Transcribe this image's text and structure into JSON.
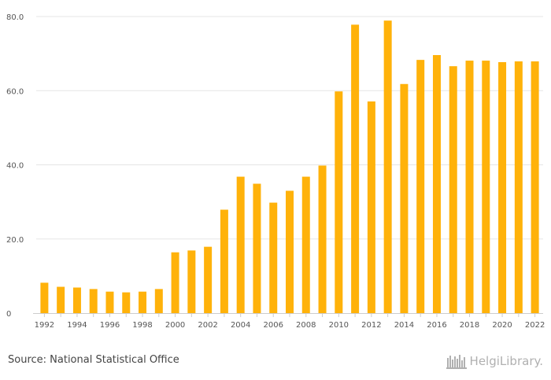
{
  "chart_data": {
    "type": "bar",
    "categories": [
      "1992",
      "1993",
      "1994",
      "1995",
      "1996",
      "1997",
      "1998",
      "1999",
      "2000",
      "2001",
      "2002",
      "2003",
      "2004",
      "2005",
      "2006",
      "2007",
      "2008",
      "2009",
      "2010",
      "2011",
      "2012",
      "2013",
      "2014",
      "2015",
      "2016",
      "2017",
      "2018",
      "2019",
      "2020",
      "2021",
      "2022"
    ],
    "values": [
      8.2,
      7.1,
      6.9,
      6.5,
      5.8,
      5.6,
      5.8,
      6.5,
      16.4,
      16.9,
      17.9,
      27.9,
      36.8,
      34.9,
      29.8,
      33.0,
      36.8,
      39.8,
      59.8,
      77.8,
      57.1,
      78.9,
      61.8,
      68.3,
      69.6,
      66.6,
      68.1,
      68.1,
      67.7,
      67.9,
      67.9
    ],
    "ylim": [
      0,
      80
    ],
    "yticks": [
      "0",
      "20.0",
      "40.0",
      "60.0",
      "80.0"
    ],
    "xtick_labels": [
      "1992",
      "1994",
      "1996",
      "1998",
      "2000",
      "2002",
      "2004",
      "2006",
      "2008",
      "2010",
      "2012",
      "2014",
      "2016",
      "2018",
      "2020",
      "2022"
    ],
    "grid": true,
    "bar_color": "#FFB20A"
  },
  "footer": {
    "source": "Source: National Statistical Office",
    "brand": "HelgiLibrary."
  },
  "colors": {
    "grid": "#e5e5e5",
    "axis": "#cccccc",
    "brand": "#b0b0b0"
  }
}
